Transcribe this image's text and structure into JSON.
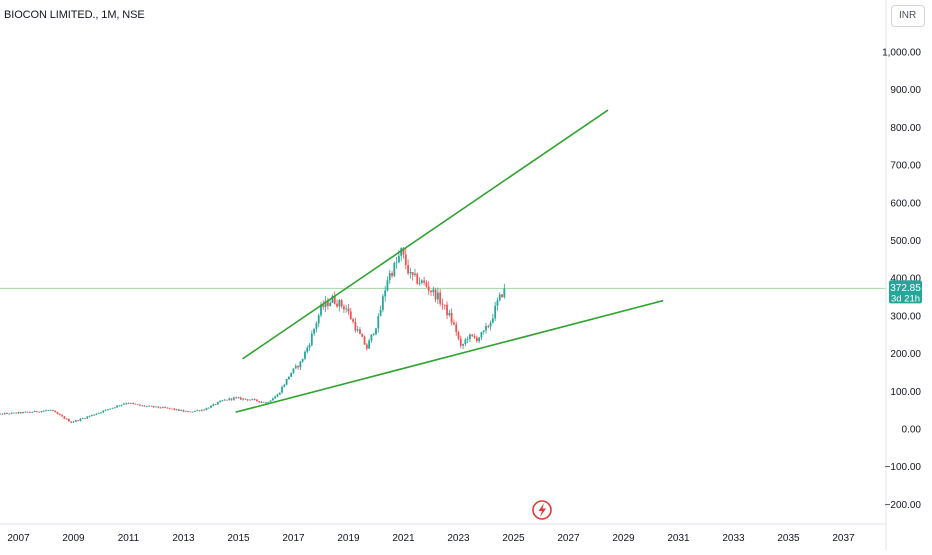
{
  "header": {
    "title": "BIOCON LIMITED., 1M, NSE",
    "currency": "INR"
  },
  "price_label": {
    "value": "372.85",
    "countdown": "3d 21h"
  },
  "colors": {
    "up": "#26a69a",
    "down": "#ef5350",
    "trendline": "#2fa32f",
    "price_line": "#a5d6a7",
    "axis_text": "#131722",
    "badge_bg": "#26a69a"
  },
  "icons": {
    "alert": "flash-alert-icon"
  },
  "chart_data": {
    "type": "candlestick",
    "title": "BIOCON LIMITED., 1M, NSE",
    "x_axis": {
      "type": "date",
      "range": [
        "2006-01",
        "2038-01"
      ],
      "tick_labels": [
        "2007",
        "2009",
        "2011",
        "2013",
        "2015",
        "2017",
        "2019",
        "2021",
        "2023",
        "2025",
        "2027",
        "2029",
        "2031",
        "2033",
        "2035",
        "2037"
      ]
    },
    "y_axis": {
      "position": "right",
      "range": [
        -260,
        1100
      ],
      "tick_values": [
        1000,
        900,
        800,
        700,
        600,
        500,
        400,
        300,
        200,
        100,
        0,
        -100,
        -200
      ],
      "tick_labels": [
        "1,000.00",
        "900.00",
        "800.00",
        "700.00",
        "600.00",
        "500.00",
        "400.00",
        "300.00",
        "200.00",
        "100.00",
        "0.00",
        "−100.00",
        "−200.00"
      ]
    },
    "grid": false,
    "last_price": 372.85,
    "anchors": [
      [
        "2006-01",
        38
      ],
      [
        "2007-06",
        45
      ],
      [
        "2008-03",
        50
      ],
      [
        "2008-12",
        18
      ],
      [
        "2009-06",
        30
      ],
      [
        "2010-03",
        50
      ],
      [
        "2010-12",
        70
      ],
      [
        "2011-06",
        62
      ],
      [
        "2012-06",
        55
      ],
      [
        "2013-03",
        45
      ],
      [
        "2013-10",
        52
      ],
      [
        "2014-06",
        75
      ],
      [
        "2014-11",
        82
      ],
      [
        "2015-06",
        78
      ],
      [
        "2016-01",
        70
      ],
      [
        "2016-06",
        90
      ],
      [
        "2016-12",
        150
      ],
      [
        "2017-04",
        175
      ],
      [
        "2017-08",
        230
      ],
      [
        "2018-01",
        320
      ],
      [
        "2018-06",
        345
      ],
      [
        "2018-12",
        320
      ],
      [
        "2019-04",
        270
      ],
      [
        "2019-09",
        215
      ],
      [
        "2020-02",
        290
      ],
      [
        "2020-06",
        400
      ],
      [
        "2020-10",
        440
      ],
      [
        "2020-12",
        470
      ],
      [
        "2021-04",
        405
      ],
      [
        "2021-10",
        385
      ],
      [
        "2022-04",
        350
      ],
      [
        "2022-09",
        300
      ],
      [
        "2022-12",
        260
      ],
      [
        "2023-02",
        215
      ],
      [
        "2023-05",
        245
      ],
      [
        "2023-09",
        240
      ],
      [
        "2023-12",
        255
      ],
      [
        "2024-03",
        285
      ],
      [
        "2024-06",
        335
      ],
      [
        "2024-09",
        372.85
      ]
    ],
    "trendlines": [
      {
        "start": [
          "2015-03",
          187
        ],
        "end": [
          "2028-06",
          845
        ]
      },
      {
        "start": [
          "2014-12",
          45
        ],
        "end": [
          "2030-06",
          340
        ]
      }
    ]
  }
}
